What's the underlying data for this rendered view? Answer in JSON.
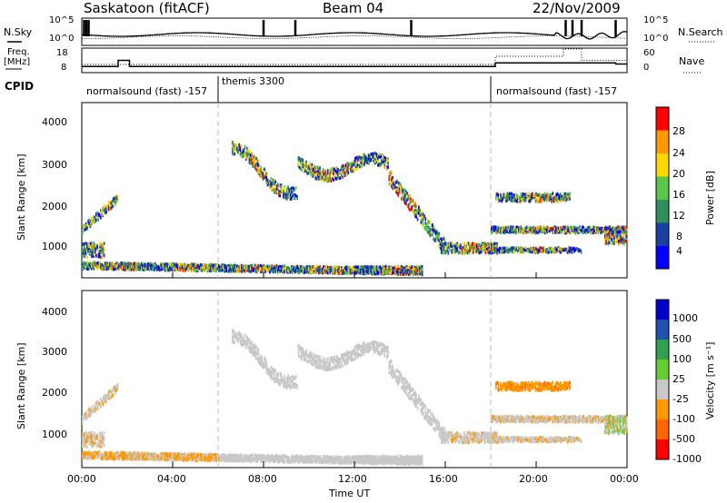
{
  "header": {
    "station": "Saskatoon (fitACF)",
    "beam": "Beam 04",
    "date": "22/Nov/2009"
  },
  "side_labels": {
    "nsky": "N.Sky",
    "freq_line1": "Freq.",
    "freq_line2": "[MHz]",
    "cpid": "CPID",
    "nsearch": "N.Search",
    "nave": "Nave"
  },
  "cpid_segments": [
    {
      "label": "normalsound (fast) -157",
      "start": 0.0,
      "end": 6.0
    },
    {
      "label": "themis 3300",
      "start": 6.0,
      "end": 18.0
    },
    {
      "label": "normalsound (fast) -157",
      "start": 18.0,
      "end": 24.0
    }
  ],
  "chart_data": [
    {
      "type": "line",
      "name": "noise",
      "y_left_ticks": [
        "10^5",
        "10^0"
      ],
      "y_right_ticks": [
        "10^5",
        "10^0"
      ],
      "legend_left": "N.Sky",
      "legend_right": "N.Search"
    },
    {
      "type": "line",
      "name": "freq-nave",
      "ylim_freq": [
        8,
        18
      ],
      "ylim_nave": [
        0,
        60
      ],
      "y_left_ticks": [
        "18",
        "8"
      ],
      "y_right_ticks": [
        "60",
        "0"
      ],
      "freq_steps": [
        [
          0.0,
          10.5
        ],
        [
          1.6,
          13.0
        ],
        [
          2.1,
          10.5
        ],
        [
          18.2,
          12.0
        ],
        [
          23.5,
          11.5
        ]
      ],
      "nave_steps": [
        [
          0.0,
          20
        ],
        [
          18.2,
          40
        ],
        [
          21.2,
          58
        ],
        [
          22.0,
          30
        ],
        [
          24.0,
          30
        ]
      ]
    },
    {
      "type": "heatmap",
      "name": "power",
      "ylabel": "Slant Range [km]",
      "ylim": [
        180,
        4500
      ],
      "y_ticks": [
        "4000",
        "3000",
        "2000",
        "1000"
      ],
      "colorbar_label": "Power [dB]",
      "colorbar_ticks": [
        "28",
        "24",
        "20",
        "16",
        "12",
        "8",
        "4"
      ],
      "colors": [
        "#0000ff",
        "#1c3fa0",
        "#2f8f5f",
        "#5cc64a",
        "#ffd700",
        "#ff9900",
        "#ff0000"
      ]
    },
    {
      "type": "heatmap",
      "name": "velocity",
      "ylabel": "Slant Range [km]",
      "ylim": [
        180,
        4500
      ],
      "y_ticks": [
        "4000",
        "3000",
        "2000",
        "1000"
      ],
      "colorbar_label": "Velocity [m s⁻¹]",
      "colorbar_ticks": [
        "1000",
        "500",
        "100",
        "25",
        "-25",
        "-100",
        "-500",
        "-1000"
      ],
      "colors": [
        "#0000cc",
        "#2050b0",
        "#30a050",
        "#66cc33",
        "#c8c8c8",
        "#ff9900",
        "#ff6600",
        "#ff0000"
      ]
    }
  ],
  "time_axis": {
    "label": "Time UT",
    "ticks": [
      "00:00",
      "04:00",
      "08:00",
      "12:00",
      "16:00",
      "20:00",
      "00:00"
    ],
    "xlim_hours": [
      0,
      24
    ]
  }
}
